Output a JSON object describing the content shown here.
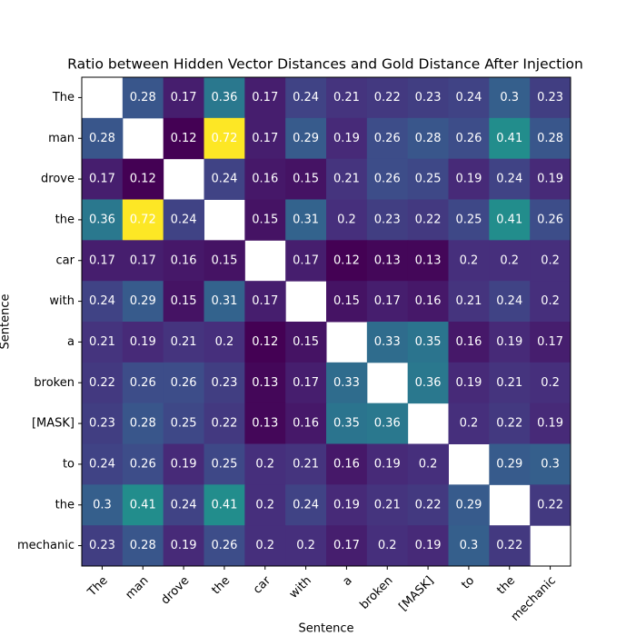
{
  "chart_data": {
    "type": "heatmap",
    "title": "Ratio between Hidden Vector Distances and Gold Distance After Injection",
    "x_label": "Sentence",
    "y_label": "Sentence",
    "x_categories": [
      "The",
      "man",
      "drove",
      "the",
      "car",
      "with",
      "a",
      "broken",
      "[MASK]",
      "to",
      "the",
      "mechanic"
    ],
    "y_categories": [
      "The",
      "man",
      "drove",
      "the",
      "car",
      "with",
      "a",
      "broken",
      "[MASK]",
      "to",
      "the",
      "mechanic"
    ],
    "colormap": "viridis",
    "values": [
      [
        null,
        0.28,
        0.17,
        0.36,
        0.17,
        0.24,
        0.21,
        0.22,
        0.23,
        0.24,
        0.3,
        0.23
      ],
      [
        0.28,
        null,
        0.12,
        0.72,
        0.17,
        0.29,
        0.19,
        0.26,
        0.28,
        0.26,
        0.41,
        0.28
      ],
      [
        0.17,
        0.12,
        null,
        0.24,
        0.16,
        0.15,
        0.21,
        0.26,
        0.25,
        0.19,
        0.24,
        0.19
      ],
      [
        0.36,
        0.72,
        0.24,
        null,
        0.15,
        0.31,
        0.2,
        0.23,
        0.22,
        0.25,
        0.41,
        0.26
      ],
      [
        0.17,
        0.17,
        0.16,
        0.15,
        null,
        0.17,
        0.12,
        0.13,
        0.13,
        0.2,
        0.2,
        0.2
      ],
      [
        0.24,
        0.29,
        0.15,
        0.31,
        0.17,
        null,
        0.15,
        0.17,
        0.16,
        0.21,
        0.24,
        0.2
      ],
      [
        0.21,
        0.19,
        0.21,
        0.2,
        0.12,
        0.15,
        null,
        0.33,
        0.35,
        0.16,
        0.19,
        0.17
      ],
      [
        0.22,
        0.26,
        0.26,
        0.23,
        0.13,
        0.17,
        0.33,
        null,
        0.36,
        0.19,
        0.21,
        0.2
      ],
      [
        0.23,
        0.28,
        0.25,
        0.22,
        0.13,
        0.16,
        0.35,
        0.36,
        null,
        0.2,
        0.22,
        0.19
      ],
      [
        0.24,
        0.26,
        0.19,
        0.25,
        0.2,
        0.21,
        0.16,
        0.19,
        0.2,
        null,
        0.29,
        0.3
      ],
      [
        0.3,
        0.41,
        0.24,
        0.41,
        0.2,
        0.24,
        0.19,
        0.21,
        0.22,
        0.29,
        null,
        0.22
      ],
      [
        0.23,
        0.28,
        0.19,
        0.26,
        0.2,
        0.2,
        0.17,
        0.2,
        0.19,
        0.3,
        0.22,
        null
      ]
    ]
  }
}
